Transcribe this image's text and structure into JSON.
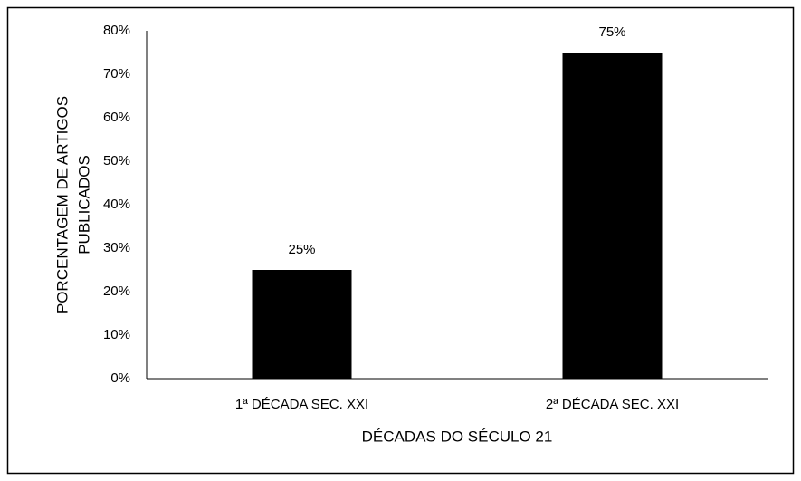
{
  "chart_data": {
    "type": "bar",
    "categories": [
      "1ª DÉCADA SEC. XXI",
      "2ª DÉCADA SEC. XXI"
    ],
    "values": [
      25,
      75
    ],
    "value_labels": [
      "25%",
      "75%"
    ],
    "color": "#000000",
    "xlabel": "DÉCADAS DO SÉCULO 21",
    "ylabel": [
      "PORCENTAGEM DE ARTIGOS",
      "PUBLICADOS"
    ],
    "ylim": [
      0,
      80
    ],
    "yticks": [
      {
        "value": 0,
        "label": "0%"
      },
      {
        "value": 10,
        "label": "10%"
      },
      {
        "value": 20,
        "label": "20%"
      },
      {
        "value": 30,
        "label": "30%"
      },
      {
        "value": 40,
        "label": "40%"
      },
      {
        "value": 50,
        "label": "50%"
      },
      {
        "value": 60,
        "label": "60%"
      },
      {
        "value": 70,
        "label": "70%"
      },
      {
        "value": 80,
        "label": "80%"
      }
    ],
    "grid": false
  }
}
